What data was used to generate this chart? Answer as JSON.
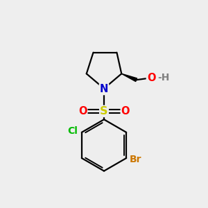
{
  "background_color": "#eeeeee",
  "bond_color": "#000000",
  "atom_colors": {
    "N": "#0000cc",
    "O": "#ff0000",
    "S": "#cccc00",
    "Cl": "#00bb00",
    "Br": "#cc7700",
    "H": "#808080",
    "C": "#000000"
  },
  "fig_width": 3.0,
  "fig_height": 3.0,
  "dpi": 100
}
